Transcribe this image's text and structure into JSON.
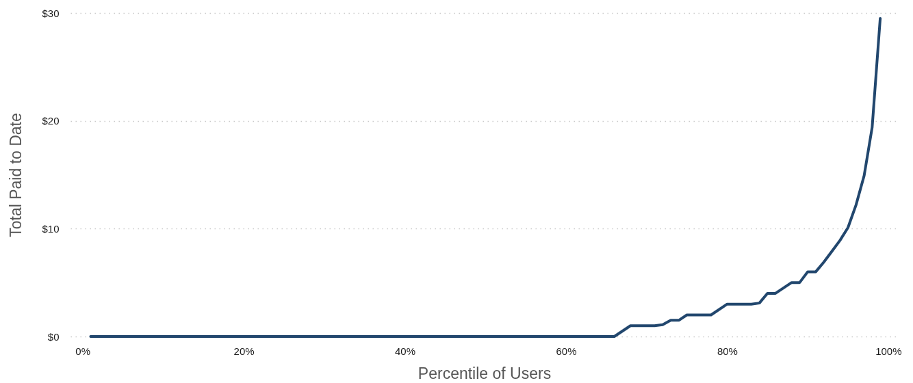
{
  "chart_data": {
    "type": "line",
    "xlabel": "Percentile of Users",
    "ylabel": "Total Paid to Date",
    "x": [
      1,
      66,
      68,
      71,
      72,
      73,
      74,
      75,
      78,
      80,
      83,
      84,
      85,
      86,
      88,
      89,
      90,
      91,
      92,
      93,
      94,
      95,
      96,
      97,
      98,
      99
    ],
    "series": [
      {
        "color": "#22476e",
        "values": [
          0,
          0,
          1,
          1,
          1.1,
          1.5,
          1.5,
          2,
          2,
          3,
          3,
          3.1,
          4,
          4,
          5,
          5,
          6,
          6,
          6.9,
          7.9,
          8.9,
          10.1,
          12.2,
          14.9,
          19.4,
          29.5
        ]
      }
    ],
    "xlim": [
      -1.5,
      101.2
    ],
    "ylim": [
      0,
      30
    ],
    "xticks": [
      {
        "value": 0,
        "label": "0%"
      },
      {
        "value": 20,
        "label": "20%"
      },
      {
        "value": 40,
        "label": "40%"
      },
      {
        "value": 60,
        "label": "60%"
      },
      {
        "value": 80,
        "label": "80%"
      },
      {
        "value": 100,
        "label": "100%"
      }
    ],
    "yticks": [
      {
        "value": 0,
        "label": "$0"
      },
      {
        "value": 10,
        "label": "$10"
      },
      {
        "value": 20,
        "label": "$20"
      },
      {
        "value": 30,
        "label": "$30"
      }
    ],
    "grid": "y",
    "marker": "none",
    "line_style": "solid"
  }
}
